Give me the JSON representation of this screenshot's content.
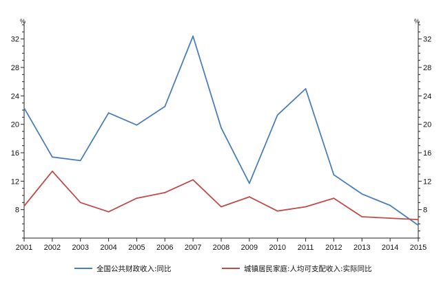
{
  "chart_data": {
    "type": "line",
    "x": [
      "2001",
      "2002",
      "2003",
      "2004",
      "2005",
      "2006",
      "2007",
      "2008",
      "2009",
      "2010",
      "2011",
      "2012",
      "2013",
      "2014",
      "2015"
    ],
    "series": [
      {
        "name": "全国公共财政收入:同比",
        "color": "#4a7ebb",
        "axis": "left",
        "values": [
          22.3,
          15.4,
          14.9,
          21.6,
          19.9,
          22.5,
          32.4,
          19.5,
          11.7,
          21.3,
          25.0,
          12.9,
          10.2,
          8.6,
          5.8
        ]
      },
      {
        "name": "城镇居民家庭:人均可支配收入:实际同比",
        "color": "#be4b48",
        "axis": "right",
        "values": [
          8.5,
          13.4,
          9.0,
          7.7,
          9.6,
          10.4,
          12.2,
          8.4,
          9.8,
          7.8,
          8.4,
          9.6,
          7.0,
          6.8,
          6.6
        ]
      }
    ],
    "yticks": [
      8,
      12,
      16,
      20,
      24,
      28,
      32
    ],
    "ylim": [
      4,
      34
    ],
    "left_unit": "%",
    "right_unit": "%",
    "title": "",
    "xlabel": "",
    "ylabel": "",
    "grid": false,
    "legend": "bottom"
  }
}
